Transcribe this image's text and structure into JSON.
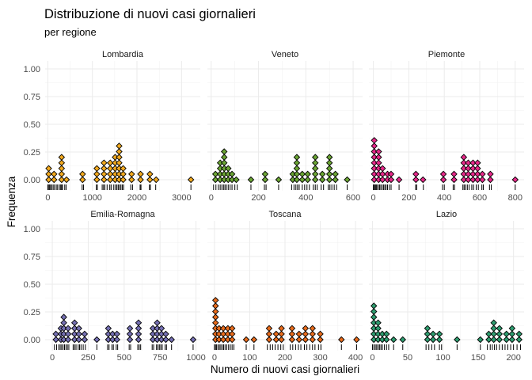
{
  "title": "Distribuzione di nuovi casi giornalieri",
  "subtitle": "per regione",
  "xlabel": "Numero di nuovi casi giornalieri",
  "ylabel": "Frequenza",
  "chart_data": {
    "type": "dotplot",
    "ylim": [
      0,
      1
    ],
    "yticks": [
      0,
      0.25,
      0.5,
      0.75,
      1
    ],
    "ytick_labels": [
      "0.00",
      "0.25",
      "0.50",
      "0.75",
      "1.00"
    ],
    "grid": true,
    "legend": "none",
    "panels": [
      {
        "name": "Lombardia",
        "color": "#F2A91E",
        "xlim": [
          -60,
          3420
        ],
        "xticks": [
          0,
          1000,
          2000,
          3000
        ],
        "xtick_labels": [
          "0",
          "1000",
          "2000",
          "3000"
        ],
        "stacks": [
          [
            20,
            3
          ],
          [
            140,
            2
          ],
          [
            310,
            5
          ],
          [
            420,
            1
          ],
          [
            780,
            2
          ],
          [
            1100,
            3
          ],
          [
            1260,
            4
          ],
          [
            1400,
            4
          ],
          [
            1510,
            5
          ],
          [
            1600,
            7
          ],
          [
            1690,
            3
          ],
          [
            1880,
            2
          ],
          [
            2080,
            2
          ],
          [
            2290,
            2
          ],
          [
            2430,
            1
          ],
          [
            3210,
            1
          ]
        ],
        "rug": [
          0,
          15,
          40,
          60,
          90,
          120,
          150,
          190,
          220,
          260,
          290,
          310,
          330,
          380,
          410,
          770,
          800,
          1090,
          1110,
          1220,
          1250,
          1280,
          1330,
          1390,
          1420,
          1480,
          1520,
          1550,
          1580,
          1610,
          1640,
          1670,
          1700,
          1860,
          1900,
          2070,
          2090,
          2280,
          2300,
          2420,
          3210
        ]
      },
      {
        "name": "Veneto",
        "color": "#6BA534",
        "xlim": [
          -16,
          640
        ],
        "xticks": [
          0,
          200,
          400,
          600
        ],
        "xtick_labels": [
          "0",
          "200",
          "400",
          "600"
        ],
        "stacks": [
          [
            18,
            2
          ],
          [
            38,
            4
          ],
          [
            55,
            6
          ],
          [
            72,
            3
          ],
          [
            88,
            2
          ],
          [
            106,
            1
          ],
          [
            168,
            1
          ],
          [
            228,
            2
          ],
          [
            285,
            1
          ],
          [
            345,
            2
          ],
          [
            362,
            5
          ],
          [
            385,
            2
          ],
          [
            408,
            2
          ],
          [
            440,
            5
          ],
          [
            470,
            2
          ],
          [
            500,
            5
          ],
          [
            525,
            2
          ],
          [
            575,
            1
          ]
        ],
        "rug": [
          10,
          20,
          30,
          38,
          45,
          52,
          58,
          64,
          72,
          80,
          88,
          100,
          110,
          168,
          225,
          232,
          285,
          340,
          350,
          358,
          365,
          372,
          385,
          395,
          405,
          415,
          432,
          440,
          448,
          465,
          475,
          495,
          502,
          510,
          520,
          530,
          575
        ]
      },
      {
        "name": "Piemonte",
        "color": "#E7298A",
        "xlim": [
          -25,
          850
        ],
        "xticks": [
          0,
          200,
          400,
          600,
          800
        ],
        "xtick_labels": [
          "0",
          "200",
          "400",
          "600",
          "800"
        ],
        "stacks": [
          [
            5,
            8
          ],
          [
            30,
            6
          ],
          [
            52,
            3
          ],
          [
            80,
            2
          ],
          [
            100,
            2
          ],
          [
            145,
            1
          ],
          [
            240,
            2
          ],
          [
            280,
            1
          ],
          [
            395,
            2
          ],
          [
            455,
            2
          ],
          [
            510,
            5
          ],
          [
            535,
            4
          ],
          [
            562,
            4
          ],
          [
            588,
            4
          ],
          [
            615,
            2
          ],
          [
            660,
            2
          ],
          [
            800,
            1
          ]
        ],
        "rug": [
          0,
          5,
          10,
          15,
          20,
          28,
          35,
          42,
          50,
          58,
          65,
          72,
          80,
          90,
          100,
          145,
          238,
          245,
          282,
          390,
          400,
          450,
          458,
          505,
          512,
          520,
          530,
          540,
          555,
          565,
          580,
          592,
          612,
          620,
          655,
          665,
          800
        ]
      },
      {
        "name": "Emilia-Romagna",
        "color": "#7570B3",
        "xlim": [
          -50,
          1030
        ],
        "xticks": [
          0,
          250,
          500,
          750,
          1000
        ],
        "xtick_labels": [
          "0",
          "250",
          "500",
          "750",
          "1000"
        ],
        "stacks": [
          [
            25,
            2
          ],
          [
            60,
            3
          ],
          [
            80,
            5
          ],
          [
            110,
            3
          ],
          [
            155,
            4
          ],
          [
            185,
            3
          ],
          [
            225,
            2
          ],
          [
            310,
            1
          ],
          [
            390,
            3
          ],
          [
            420,
            2
          ],
          [
            450,
            2
          ],
          [
            540,
            3
          ],
          [
            600,
            4
          ],
          [
            700,
            3
          ],
          [
            730,
            4
          ],
          [
            760,
            3
          ],
          [
            790,
            2
          ],
          [
            830,
            1
          ],
          [
            980,
            1
          ]
        ],
        "rug": [
          15,
          30,
          45,
          55,
          65,
          75,
          85,
          95,
          105,
          115,
          145,
          155,
          165,
          180,
          190,
          200,
          215,
          230,
          310,
          385,
          395,
          415,
          425,
          445,
          455,
          535,
          545,
          595,
          605,
          615,
          695,
          705,
          725,
          735,
          745,
          755,
          765,
          785,
          795,
          830,
          980
        ]
      },
      {
        "name": "Toscana",
        "color": "#E86B1B",
        "xlim": [
          -20,
          420
        ],
        "xticks": [
          0,
          100,
          200,
          300,
          400
        ],
        "xtick_labels": [
          "0",
          "100",
          "200",
          "300",
          "400"
        ],
        "stacks": [
          [
            3,
            8
          ],
          [
            13,
            3
          ],
          [
            25,
            3
          ],
          [
            38,
            3
          ],
          [
            50,
            3
          ],
          [
            90,
            1
          ],
          [
            112,
            1
          ],
          [
            155,
            3
          ],
          [
            175,
            2
          ],
          [
            190,
            3
          ],
          [
            220,
            3
          ],
          [
            240,
            2
          ],
          [
            258,
            3
          ],
          [
            278,
            3
          ],
          [
            300,
            2
          ],
          [
            360,
            1
          ],
          [
            403,
            1
          ]
        ],
        "rug": [
          0,
          3,
          6,
          10,
          14,
          18,
          22,
          26,
          30,
          35,
          40,
          45,
          50,
          55,
          90,
          112,
          150,
          158,
          165,
          172,
          180,
          188,
          195,
          215,
          222,
          230,
          238,
          245,
          255,
          262,
          270,
          278,
          285,
          295,
          302,
          360,
          403
        ]
      },
      {
        "name": "Lazio",
        "color": "#2E9C6F",
        "xlim": [
          -5,
          215
        ],
        "xticks": [
          0,
          50,
          100,
          150,
          200
        ],
        "xtick_labels": [
          "0",
          "50",
          "100",
          "150",
          "200"
        ],
        "stacks": [
          [
            2,
            7
          ],
          [
            8,
            4
          ],
          [
            14,
            2
          ],
          [
            20,
            2
          ],
          [
            30,
            1
          ],
          [
            43,
            1
          ],
          [
            78,
            3
          ],
          [
            86,
            2
          ],
          [
            95,
            2
          ],
          [
            120,
            1
          ],
          [
            153,
            1
          ],
          [
            165,
            2
          ],
          [
            172,
            4
          ],
          [
            180,
            3
          ],
          [
            190,
            2
          ],
          [
            198,
            3
          ],
          [
            208,
            2
          ]
        ],
        "rug": [
          0,
          2,
          4,
          6,
          8,
          10,
          12,
          14,
          17,
          20,
          23,
          30,
          43,
          76,
          80,
          84,
          88,
          95,
          98,
          120,
          153,
          163,
          167,
          170,
          173,
          176,
          180,
          184,
          188,
          192,
          196,
          200,
          205,
          210
        ]
      }
    ]
  }
}
